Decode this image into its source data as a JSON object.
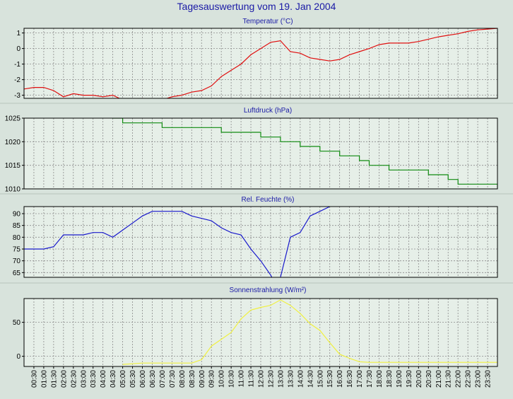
{
  "title": "Tagesauswertung vom 19. Jan 2004",
  "colors": {
    "background": "#d8e3dc",
    "plot_background": "#e6efe8",
    "grid": "#8a8a8a",
    "frame": "#000000",
    "title": "#1a1aa6",
    "panel_title": "#1a1aa6"
  },
  "chart_data": [
    {
      "type": "line",
      "title": "Temperatur (°C)",
      "color": "#e01010",
      "ylim": [
        -3.2,
        1.3
      ],
      "yticks": [
        -3,
        -2,
        -1,
        0,
        1
      ],
      "x": [
        0.0,
        0.5,
        1.0,
        1.5,
        2.0,
        2.5,
        3.0,
        3.5,
        4.0,
        4.5,
        5.0,
        5.5,
        6.0,
        6.5,
        7.0,
        7.5,
        8.0,
        8.5,
        9.0,
        9.5,
        10.0,
        10.5,
        11.0,
        11.5,
        12.0,
        12.5,
        13.0,
        13.5,
        14.0,
        14.5,
        15.0,
        15.5,
        16.0,
        16.5,
        17.0,
        17.5,
        18.0,
        18.5,
        19.0,
        19.5,
        20.0,
        20.5,
        21.0,
        21.5,
        22.0,
        22.5,
        23.0,
        23.5,
        24.0
      ],
      "y": [
        -2.6,
        -2.5,
        -2.5,
        -2.7,
        -3.1,
        -2.9,
        -3.0,
        -3.0,
        -3.1,
        -3.0,
        -3.3,
        -3.3,
        -3.2,
        -3.3,
        -3.3,
        -3.1,
        -3.0,
        -2.8,
        -2.7,
        -2.4,
        -1.8,
        -1.4,
        -1.0,
        -0.4,
        0.0,
        0.4,
        0.5,
        -0.2,
        -0.3,
        -0.6,
        -0.7,
        -0.8,
        -0.7,
        -0.4,
        -0.2,
        0.0,
        0.25,
        0.35,
        0.35,
        0.35,
        0.45,
        0.6,
        0.75,
        0.85,
        0.95,
        1.1,
        1.2,
        1.25,
        1.3
      ]
    },
    {
      "type": "line",
      "title": "Luftdruck (hPa)",
      "color": "#108a10",
      "ylim": [
        1010,
        1025
      ],
      "yticks": [
        1010,
        1015,
        1020,
        1025
      ],
      "step": true,
      "x": [
        0.0,
        4.5,
        5.0,
        6.5,
        7.0,
        9.5,
        10.0,
        11.5,
        12.0,
        12.5,
        13.0,
        14.0,
        14.5,
        15.0,
        15.5,
        16.0,
        16.5,
        17.0,
        17.5,
        18.0,
        18.5,
        20.0,
        20.5,
        21.0,
        21.5,
        22.0,
        22.5,
        23.0,
        23.5,
        24.0
      ],
      "y": [
        1027,
        1025,
        1024,
        1024,
        1023,
        1023,
        1022,
        1022,
        1021,
        1021,
        1020,
        1019,
        1019,
        1018,
        1018,
        1017,
        1017,
        1016,
        1015,
        1015,
        1014,
        1014,
        1013,
        1013,
        1012,
        1011,
        1011,
        1011,
        1011,
        1010
      ]
    },
    {
      "type": "line",
      "title": "Rel. Feuchte (%)",
      "color": "#1a1acc",
      "ylim": [
        63,
        93
      ],
      "yticks": [
        65,
        70,
        75,
        80,
        85,
        90
      ],
      "x": [
        0.0,
        0.5,
        1.0,
        1.5,
        2.0,
        2.5,
        3.0,
        3.5,
        4.0,
        4.5,
        5.0,
        5.5,
        6.0,
        6.5,
        7.0,
        7.5,
        8.0,
        8.5,
        9.0,
        9.5,
        10.0,
        10.5,
        11.0,
        11.5,
        12.0,
        12.5,
        12.75,
        13.0,
        13.5,
        14.0,
        14.5,
        15.0,
        15.5,
        16.0,
        16.5
      ],
      "y": [
        75,
        75,
        75,
        76,
        81,
        81,
        81,
        82,
        82,
        80,
        83,
        86,
        89,
        91,
        91,
        91,
        91,
        89,
        88,
        87,
        84,
        82,
        81,
        75,
        70,
        64,
        60,
        63,
        80,
        82,
        89,
        91,
        93,
        95,
        97
      ]
    },
    {
      "type": "line",
      "title": "Sonnenstrahlung (W/m²)",
      "color": "#f0f040",
      "ylim": [
        -15,
        85
      ],
      "yticks": [
        0,
        50
      ],
      "x": [
        5.0,
        5.5,
        6.0,
        6.5,
        7.0,
        7.5,
        8.0,
        8.5,
        9.0,
        9.5,
        10.0,
        10.5,
        11.0,
        11.5,
        12.0,
        12.5,
        13.0,
        13.5,
        14.0,
        14.5,
        15.0,
        15.5,
        16.0,
        16.5,
        17.0,
        17.5,
        18.0,
        18.5,
        19.0,
        19.5,
        20.0,
        20.5,
        21.0,
        21.5,
        22.0,
        22.5,
        23.0,
        23.5,
        24.0
      ],
      "y": [
        -12,
        -11,
        -10,
        -10,
        -10,
        -10,
        -10,
        -10,
        -5,
        15,
        25,
        35,
        55,
        68,
        72,
        75,
        83,
        75,
        63,
        48,
        38,
        20,
        3,
        -3,
        -8,
        -9,
        -9,
        -9,
        -9,
        -9,
        -9,
        -9,
        -9,
        -9,
        -9,
        -9,
        -9,
        -9,
        -9
      ]
    }
  ],
  "x_tick_labels": [
    "00:30",
    "01:00",
    "01:30",
    "02:00",
    "02:30",
    "03:00",
    "03:30",
    "04:00",
    "04:30",
    "05:00",
    "05:30",
    "06:00",
    "06:30",
    "07:00",
    "07:30",
    "08:00",
    "08:30",
    "09:00",
    "09:30",
    "10:00",
    "10:30",
    "11:00",
    "11:30",
    "12:00",
    "12:30",
    "13:00",
    "13:30",
    "14:00",
    "14:30",
    "15:00",
    "15:30",
    "16:00",
    "16:30",
    "17:00",
    "17:30",
    "18:00",
    "18:30",
    "19:00",
    "19:30",
    "20:00",
    "20:30",
    "21:00",
    "21:30",
    "22:00",
    "22:30",
    "23:00",
    "23:30"
  ]
}
